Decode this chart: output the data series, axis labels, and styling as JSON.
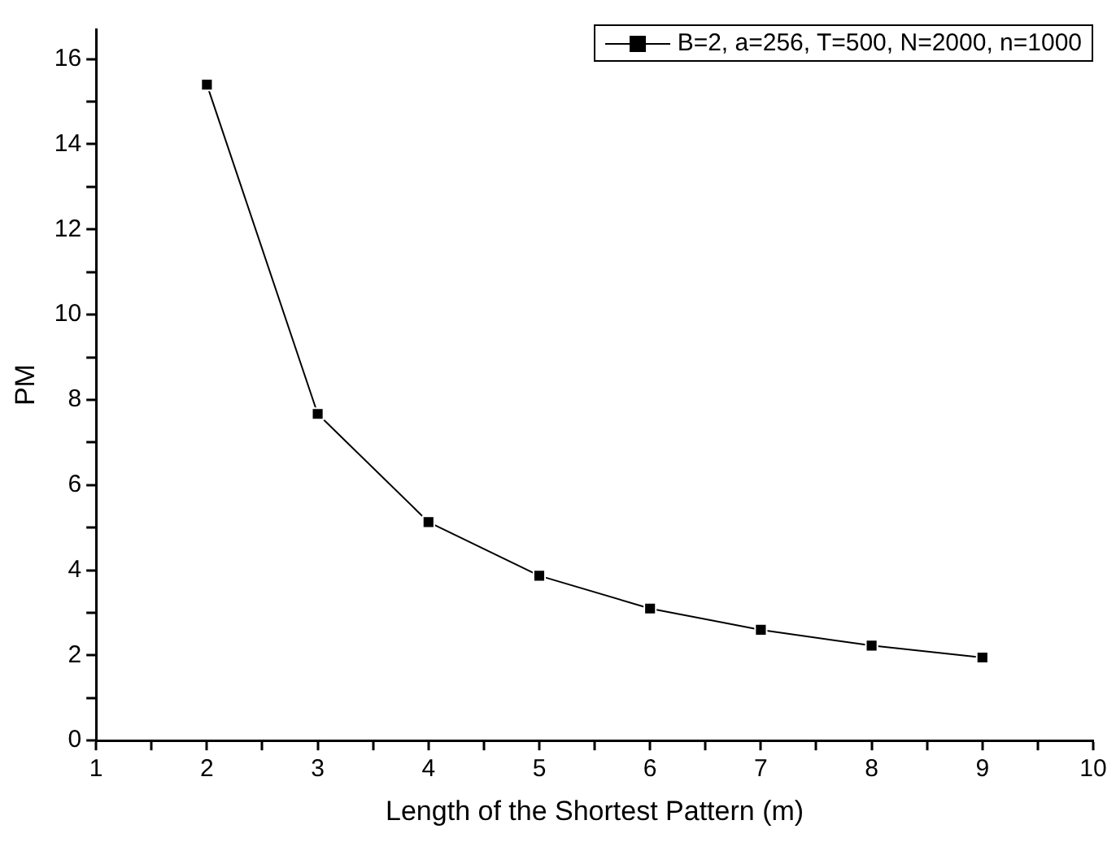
{
  "chart_data": {
    "type": "line",
    "xlabel": "Length of the Shortest Pattern (m)",
    "ylabel": "PM",
    "x": [
      2,
      3,
      4,
      5,
      6,
      7,
      8,
      9
    ],
    "series": [
      {
        "name": "B=2, a=256, T=500, N=2000, n=1000",
        "color": "#000000",
        "values": [
          15.4,
          7.67,
          5.13,
          3.87,
          3.1,
          2.6,
          2.23,
          1.95
        ]
      }
    ],
    "xlim": [
      1,
      10
    ],
    "xticks": [
      1,
      {
        "value": 1.5,
        "label": null
      },
      2,
      {
        "value": 2.5,
        "label": null
      },
      3,
      {
        "value": 3.5,
        "label": null
      },
      4,
      {
        "value": 4.5,
        "label": null
      },
      5,
      {
        "value": 5.5,
        "label": null
      },
      6,
      {
        "value": 6.5,
        "label": null
      },
      7,
      {
        "value": 7.5,
        "label": null
      },
      8,
      {
        "value": 8.5,
        "label": null
      },
      9,
      {
        "value": 9.5,
        "label": null
      },
      10
    ],
    "ylim": [
      0,
      16.7
    ],
    "yticks": [
      0,
      {
        "value": 1,
        "label": null
      },
      2,
      {
        "value": 3,
        "label": null
      },
      4,
      {
        "value": 5,
        "label": null
      },
      6,
      {
        "value": 7,
        "label": null
      },
      8,
      {
        "value": 9,
        "label": null
      },
      10,
      {
        "value": 11,
        "label": null
      },
      12,
      {
        "value": 13,
        "label": null
      },
      14,
      {
        "value": 15,
        "label": null
      },
      16
    ],
    "grid": false,
    "legend": "top right",
    "marker": "square",
    "line_style": "solid"
  }
}
